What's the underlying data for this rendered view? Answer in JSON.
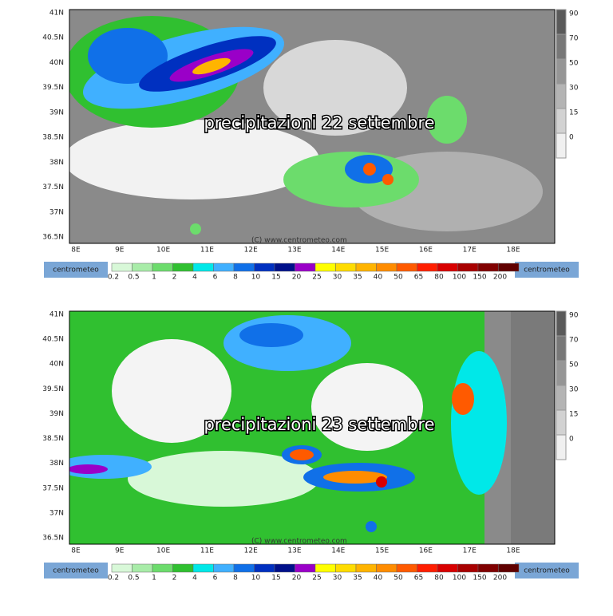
{
  "panels": [
    {
      "title": "precipitazioni 22 settembre",
      "copyright": "(C) www.centrometeo.com"
    },
    {
      "title": "precipitazioni 23 settembre",
      "copyright": "(C) www.centrometeo.com"
    }
  ],
  "lat_labels": [
    "41N",
    "40.5N",
    "40N",
    "39.5N",
    "39N",
    "38.5N",
    "38N",
    "37.5N",
    "37N",
    "36.5N"
  ],
  "lon_labels": [
    "8E",
    "9E",
    "10E",
    "11E",
    "12E",
    "13E",
    "14E",
    "15E",
    "16E",
    "17E",
    "18E"
  ],
  "cloud_scale": [
    90,
    70,
    50,
    30,
    15,
    0
  ],
  "precip_scale": {
    "labels": [
      0.2,
      0.5,
      1,
      2,
      4,
      6,
      8,
      10,
      15,
      20,
      25,
      30,
      35,
      40,
      50,
      65,
      80,
      100,
      150,
      200
    ],
    "colors": [
      "#d8f8d8",
      "#a8eca8",
      "#6cdc6c",
      "#30c030",
      "#00e8e8",
      "#40b0ff",
      "#1070e8",
      "#0030c0",
      "#00108a",
      "#9a00c8",
      "#ffff00",
      "#ffdc00",
      "#ffb400",
      "#ff8c00",
      "#ff5a00",
      "#ff1e00",
      "#d80000",
      "#a80000",
      "#800000",
      "#600000"
    ]
  },
  "logo": "centrometeo"
}
